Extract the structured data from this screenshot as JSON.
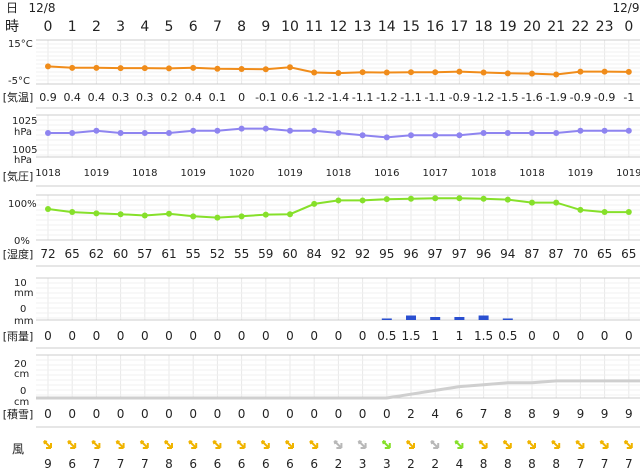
{
  "header": {
    "day_label": "日",
    "time_label": "時",
    "date_start": "12/8",
    "date_end": "12/9",
    "hours": [
      "0",
      "1",
      "2",
      "3",
      "4",
      "5",
      "6",
      "7",
      "8",
      "9",
      "10",
      "11",
      "12",
      "13",
      "14",
      "15",
      "16",
      "17",
      "18",
      "19",
      "20",
      "21",
      "22",
      "23",
      "0"
    ]
  },
  "temperature": {
    "section_label": "[気温]",
    "axis_top": "15°C",
    "axis_bottom": "-5°C",
    "color": "#f08c1a",
    "values": [
      "0.9",
      "0.4",
      "0.4",
      "0.3",
      "0.3",
      "0.2",
      "0.4",
      "0.1",
      "0",
      "-0.1",
      "0.6",
      "-1.2",
      "-1.4",
      "-1.1",
      "-1.2",
      "-1.1",
      "-1.1",
      "-0.9",
      "-1.2",
      "-1.5",
      "-1.6",
      "-1.9",
      "-0.9",
      "-0.9",
      "-1"
    ]
  },
  "pressure": {
    "section_label": "[気圧]",
    "axis_top": "1025",
    "axis_top_unit": "hPa",
    "axis_bottom": "1005",
    "axis_bottom_unit": "hPa",
    "color": "#8e84f0",
    "labels": [
      "1018",
      "",
      "1019",
      "",
      "1018",
      "",
      "1019",
      "",
      "1020",
      "",
      "1019",
      "",
      "1018",
      "",
      "1016",
      "",
      "1017",
      "",
      "1018",
      "",
      "1018",
      "",
      "1019",
      "",
      "1019"
    ]
  },
  "humidity": {
    "section_label": "[湿度]",
    "axis_top": "100%",
    "axis_bottom": "0%",
    "color": "#86e02a",
    "values": [
      "72",
      "65",
      "62",
      "60",
      "57",
      "61",
      "55",
      "52",
      "55",
      "59",
      "60",
      "84",
      "92",
      "92",
      "95",
      "96",
      "97",
      "97",
      "96",
      "94",
      "87",
      "87",
      "70",
      "65",
      "65"
    ]
  },
  "rain": {
    "section_label": "[雨量]",
    "axis_top": "10",
    "axis_top_unit": "mm",
    "axis_bottom": "0",
    "axis_bottom_unit": "mm",
    "color": "#2a4fd0",
    "values": [
      "0",
      "0",
      "0",
      "0",
      "0",
      "0",
      "0",
      "0",
      "0",
      "0",
      "0",
      "0",
      "0",
      "0",
      "0.5",
      "1.5",
      "1",
      "1",
      "1.5",
      "0.5",
      "0",
      "0",
      "0",
      "0",
      "0"
    ]
  },
  "snow": {
    "section_label": "[積雪]",
    "axis_top": "20",
    "axis_top_unit": "cm",
    "axis_bottom": "0",
    "axis_bottom_unit": "cm",
    "color": "#cfcfcf",
    "values": [
      "0",
      "0",
      "0",
      "0",
      "0",
      "0",
      "0",
      "0",
      "0",
      "0",
      "0",
      "0",
      "0",
      "0",
      "0",
      "2",
      "4",
      "6",
      "7",
      "8",
      "8",
      "9",
      "9",
      "9",
      "9"
    ]
  },
  "wind": {
    "section_label": "風",
    "values": [
      "9",
      "6",
      "7",
      "7",
      "7",
      "8",
      "6",
      "6",
      "6",
      "6",
      "6",
      "6",
      "2",
      "3",
      "3",
      "2",
      "2",
      "4",
      "8",
      "8",
      "8",
      "8",
      "7",
      "7",
      "7"
    ],
    "arrow_colors": [
      "#f0b400",
      "#f0b400",
      "#f0b400",
      "#f0b400",
      "#f0b400",
      "#f0b400",
      "#f0b400",
      "#f0b400",
      "#f0b400",
      "#f0b400",
      "#f0b400",
      "#f0b400",
      "#b8b8b8",
      "#b8b8b8",
      "#86e02a",
      "#f0b400",
      "#b8b8b8",
      "#86e02a",
      "#f0b400",
      "#f0b400",
      "#f0b400",
      "#f0b400",
      "#f0b400",
      "#f0b400",
      "#f0b400"
    ]
  }
}
